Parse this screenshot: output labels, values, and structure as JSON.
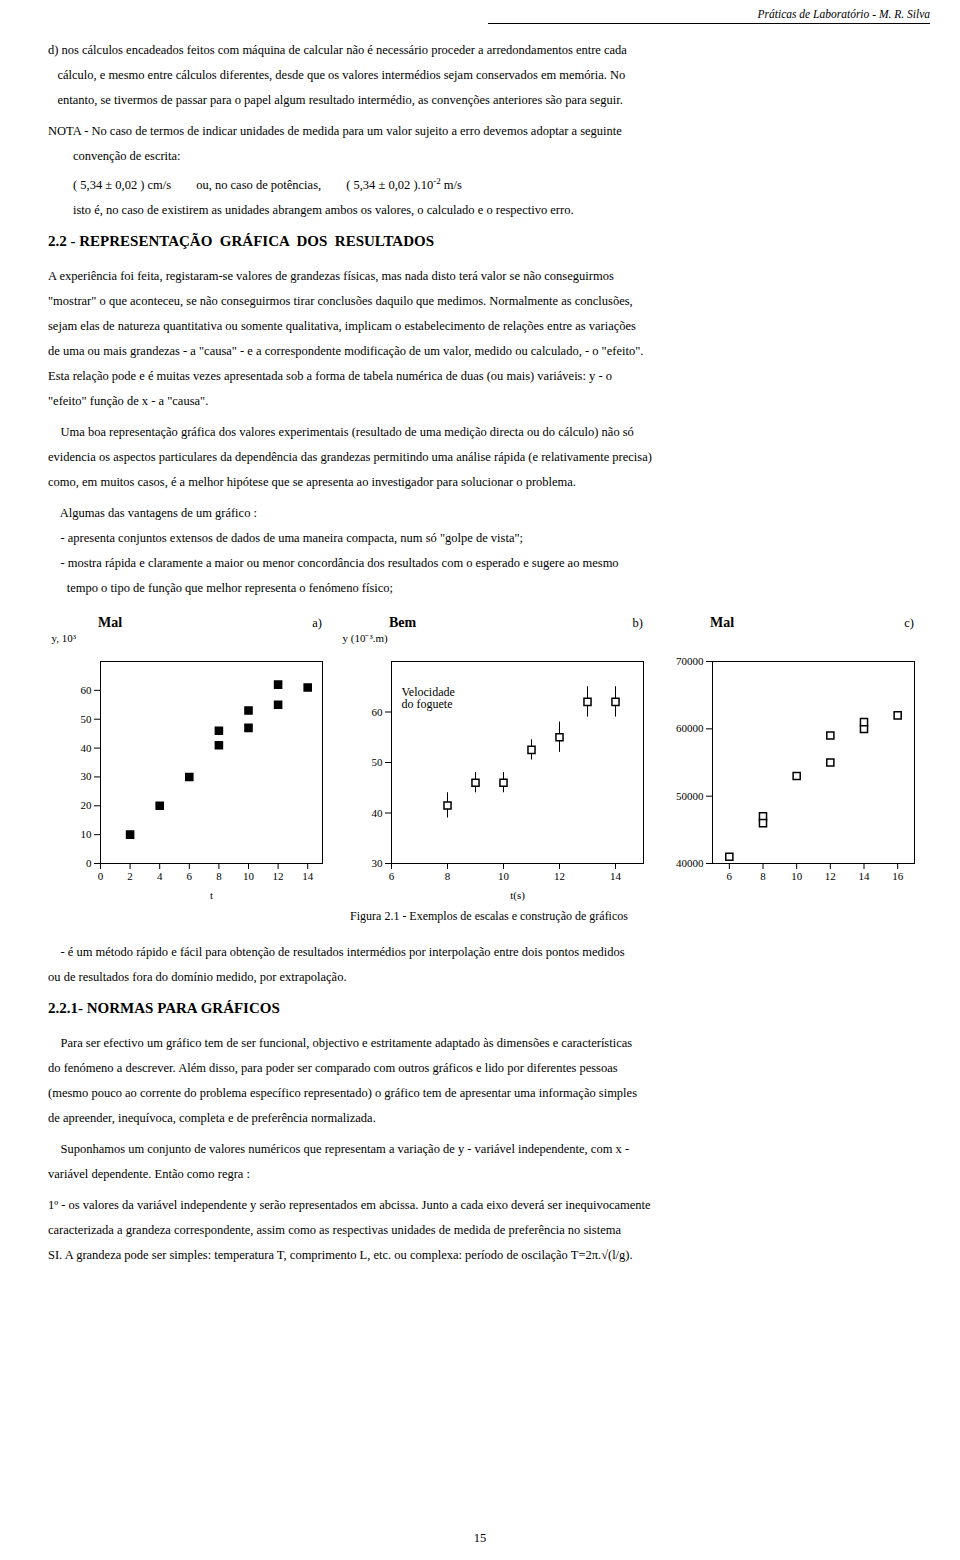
{
  "chart_data": [
    {
      "type": "scatter",
      "title": "Mal",
      "annotations": [
        "a)"
      ],
      "xlabel": "t",
      "ylabel": "y, 10³",
      "x": [
        2,
        4,
        6,
        8,
        8,
        10,
        10,
        12,
        12,
        14
      ],
      "values": [
        10,
        20,
        30,
        41,
        46,
        47,
        53,
        55,
        62,
        61
      ],
      "xlim": [
        0,
        15
      ],
      "ylim": [
        0,
        70
      ],
      "xticks": [
        0,
        2,
        4,
        6,
        8,
        10,
        12,
        14
      ],
      "yticks": [
        0,
        10,
        20,
        30,
        40,
        50,
        60
      ],
      "marker": "square"
    },
    {
      "type": "scatter",
      "title": "Bem",
      "annotations": [
        "b)",
        "Velocidade\ndo foguete"
      ],
      "xlabel": "t(s)",
      "ylabel": "y (10⁻³.m)",
      "x": [
        8,
        9,
        10,
        11,
        12,
        13,
        14
      ],
      "values": [
        41.5,
        46,
        46,
        52.5,
        55,
        62,
        62
      ],
      "yerr": [
        2.5,
        2,
        2,
        2,
        3,
        3,
        3
      ],
      "xlim": [
        6,
        15
      ],
      "ylim": [
        30,
        70
      ],
      "xticks": [
        6,
        8,
        10,
        12,
        14
      ],
      "yticks": [
        30,
        40,
        50,
        60
      ],
      "marker": "square-open"
    },
    {
      "type": "scatter",
      "title": "Mal",
      "annotations": [
        "c)"
      ],
      "x": [
        6,
        8,
        8,
        10,
        12,
        12,
        14,
        14,
        16
      ],
      "values": [
        41000,
        47000,
        46000,
        53000,
        55000,
        59000,
        60000,
        61000,
        62000
      ],
      "xlim": [
        5,
        17
      ],
      "ylim": [
        40000,
        70000
      ],
      "xticks": [
        6,
        8,
        10,
        12,
        14,
        16
      ],
      "yticks": [
        40000,
        50000,
        60000,
        70000
      ],
      "marker": "square-open"
    }
  ],
  "page": {
    "header": "Práticas de Laboratório - M. R. Silva",
    "text_before": [
      [
        "d) nos cálculos encadeados feitos com máquina de calcular não é necessário proceder a arredondamentos entre cada",
        "   cálculo, e mesmo entre cálculos diferentes, desde que os valores intermédios sejam conservados em memória. No",
        "   entanto, se tivermos de passar para o papel algum resultado intermédio, as convenções anteriores são para seguir."
      ],
      [
        "NOTA - No caso de termos de indicar unidades de medida para um valor sujeito a erro devemos adoptar a seguinte",
        "        convenção de escrita:",
        {
          "text": "        ( 5,34 ± 0,02 ) cm/s        ou, no caso de potências,        ( 5,34 ± 0,02 ).10",
          "sup": "-2",
          "after": " m/s"
        },
        "        isto é, no caso de existirem as unidades abrangem ambos os valores, o calculado e o respectivo erro."
      ],
      {
        "heading": "2.2 - REPRESENTAÇÃO  GRÁFICA  DOS  RESULTADOS"
      },
      [
        "A experiência foi feita, registaram-se valores de grandezas físicas, mas nada disto terá valor se não conseguirmos",
        "\"mostrar\" o que aconteceu, se não conseguirmos tirar conclusões daquilo que medimos. Normalmente as conclusões,",
        "sejam elas de natureza quantitativa ou somente qualitativa, implicam o estabelecimento de relações entre as variações",
        "de uma ou mais grandezas - a \"causa\" - e a correspondente modificação de um valor, medido ou calculado, - o \"efeito\".",
        "Esta relação pode e é muitas vezes apresentada sob a forma de tabela numérica de duas (ou mais) variáveis: y - o",
        "\"efeito\" função de x - a \"causa\"."
      ],
      [
        "    Uma boa representação gráfica dos valores experimentais (resultado de uma medição directa ou do cálculo) não só",
        "evidencia os aspectos particulares da dependência das grandezas permitindo uma análise rápida (e relativamente precisa)",
        "como, em muitos casos, é a melhor hipótese que se apresenta ao investigador para solucionar o problema."
      ],
      [
        "    Algumas das vantagens de um gráfico :",
        "    - apresenta conjuntos extensos de dados de uma maneira compacta, num só \"golpe de vista\";",
        "    - mostra rápida e claramente a maior ou menor concordância dos resultados com o esperado e sugere ao mesmo",
        "      tempo o tipo de função que melhor representa o fenómeno físico;"
      ]
    ],
    "caption": "Figura 2.1 -  Exemplos de escalas e construção de gráficos",
    "text_after": [
      [
        "    - é um método rápido e fácil para obtenção de resultados intermédios por interpolação entre dois pontos medidos",
        "ou de resultados fora do domínio medido, por extrapolação."
      ],
      {
        "heading": "2.2.1- NORMAS PARA GRÁFICOS"
      },
      [
        "    Para ser efectivo um gráfico tem de ser funcional, objectivo e estritamente adaptado às dimensões e características",
        "do fenómeno a descrever. Além disso, para poder ser comparado com outros gráficos e lido por diferentes pessoas",
        "(mesmo pouco ao corrente do problema específico representado) o gráfico tem de apresentar uma informação simples",
        "de apreender, inequívoca, completa e de preferência normalizada."
      ],
      [
        "    Suponhamos um conjunto de valores numéricos que representam a variação de y - variável independente, com x -",
        "variável dependente. Então como regra :"
      ],
      [
        "1º - os valores da variável independente y serão representados em abcissa. Junto a cada eixo deverá ser inequivocamente",
        "caracterizada a grandeza correspondente, assim como as respectivas unidades de medida de preferência no sistema",
        "SI. A grandeza pode ser simples: temperatura T, comprimento L, etc. ou complexa: período de oscilação T=2π.√(l/g)."
      ]
    ],
    "page_number": "15"
  }
}
